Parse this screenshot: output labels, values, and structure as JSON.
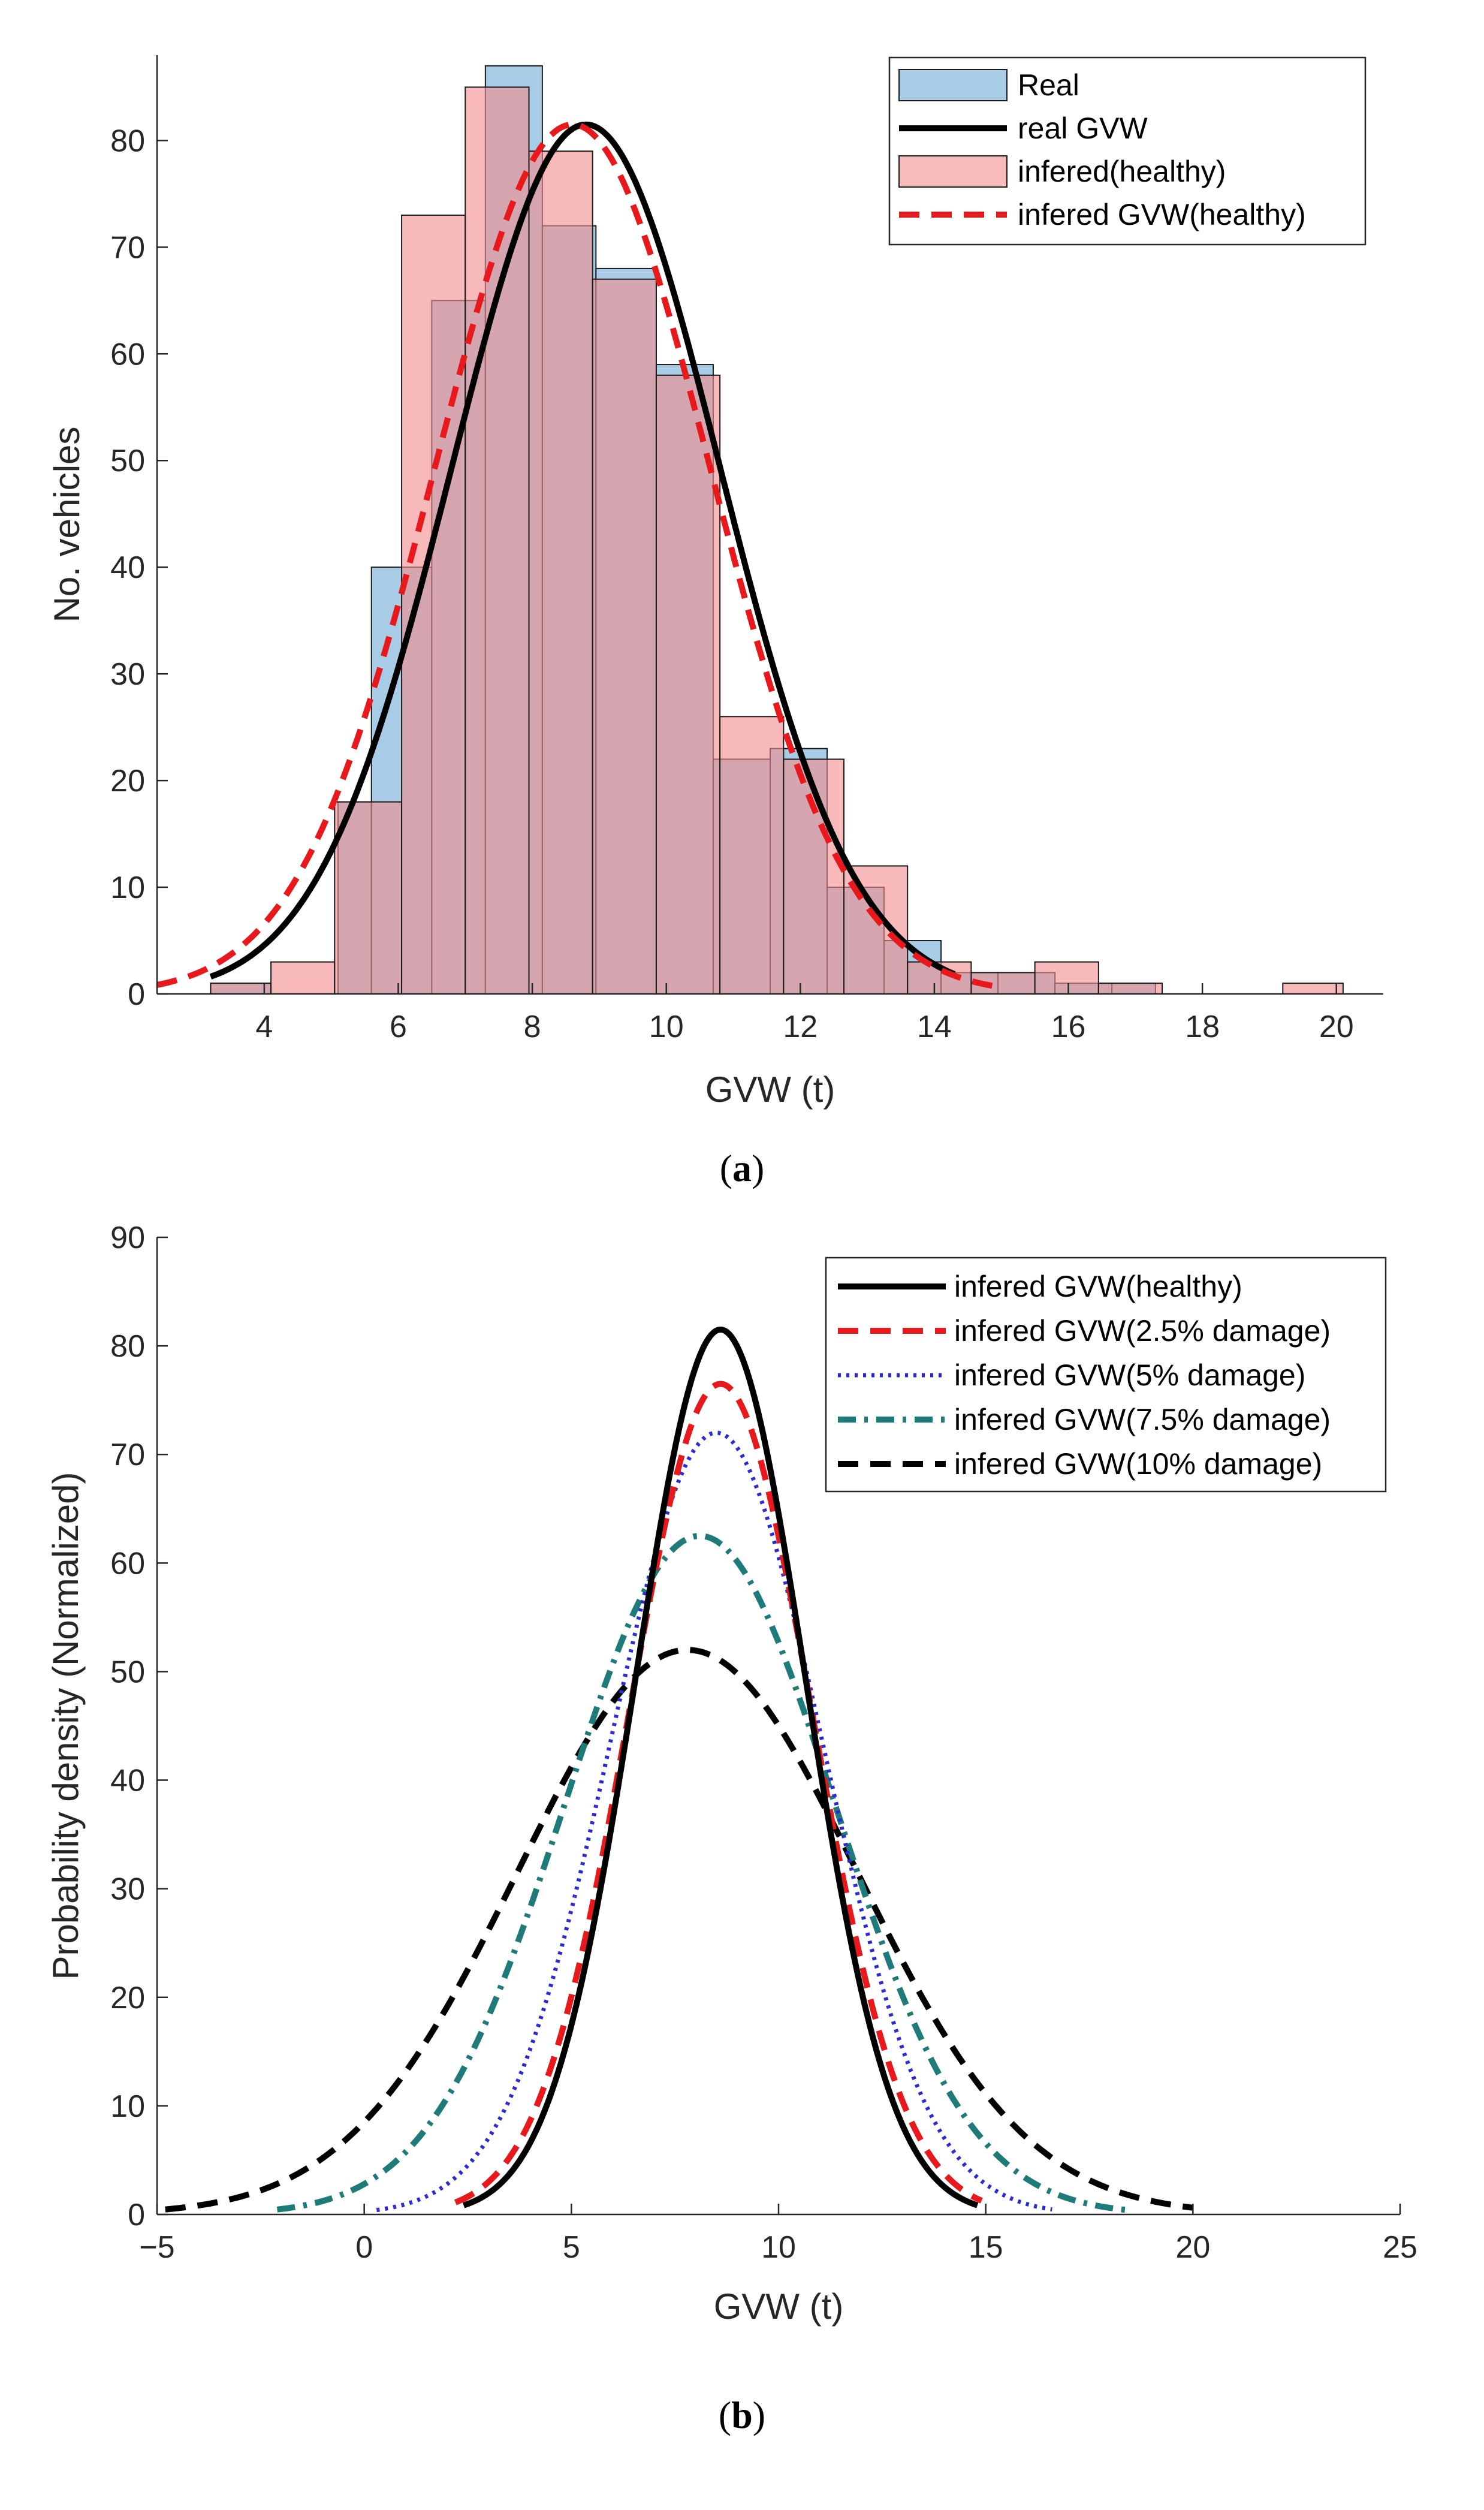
{
  "chart_data": [
    {
      "type": "bar",
      "panel": "a",
      "caption_label": "a",
      "xlabel": "GVW (t)",
      "ylabel": "No. vehicles",
      "xlim": [
        2.4,
        20.7
      ],
      "ylim": [
        0,
        88
      ],
      "xticks": [
        4,
        6,
        8,
        10,
        12,
        14,
        16,
        18,
        20
      ],
      "yticks": [
        0,
        10,
        20,
        30,
        40,
        50,
        60,
        70,
        80
      ],
      "legend_position": "top-right",
      "legend": [
        {
          "label": "Real",
          "kind": "patch",
          "fill": "#a8cce6",
          "stroke": "#2b6fa0"
        },
        {
          "label": "real GVW",
          "kind": "line",
          "color": "#000000",
          "dash": "solid"
        },
        {
          "label": "infered(healthy)",
          "kind": "patch",
          "fill": "#f7a6a6",
          "stroke": "#c84b4b"
        },
        {
          "label": "infered GVW(healthy)",
          "kind": "line",
          "color": "#e8191c",
          "dash": "dashed"
        }
      ],
      "series": [
        {
          "name": "Real",
          "color": "#a8cce6",
          "bins": [
            {
              "x0": 3.2,
              "x1": 4.1,
              "value": 1
            },
            {
              "x0": 5.1,
              "x1": 5.6,
              "value": 18
            },
            {
              "x0": 5.6,
              "x1": 6.5,
              "value": 40
            },
            {
              "x0": 6.5,
              "x1": 7.3,
              "value": 65
            },
            {
              "x0": 7.3,
              "x1": 8.15,
              "value": 87
            },
            {
              "x0": 8.15,
              "x1": 8.95,
              "value": 72
            },
            {
              "x0": 8.95,
              "x1": 9.85,
              "value": 68
            },
            {
              "x0": 9.85,
              "x1": 10.7,
              "value": 59
            },
            {
              "x0": 10.7,
              "x1": 11.55,
              "value": 22
            },
            {
              "x0": 11.55,
              "x1": 12.4,
              "value": 23
            },
            {
              "x0": 12.4,
              "x1": 13.25,
              "value": 10
            },
            {
              "x0": 13.25,
              "x1": 14.1,
              "value": 5
            },
            {
              "x0": 14.1,
              "x1": 14.95,
              "value": 2
            },
            {
              "x0": 14.95,
              "x1": 15.8,
              "value": 2
            },
            {
              "x0": 15.8,
              "x1": 16.65,
              "value": 1
            },
            {
              "x0": 16.65,
              "x1": 17.3,
              "value": 1
            }
          ]
        },
        {
          "name": "infered(healthy)",
          "color": "#f7a6a6",
          "bins": [
            {
              "x0": 3.2,
              "x1": 4.1,
              "value": 1
            },
            {
              "x0": 4.1,
              "x1": 5.05,
              "value": 3
            },
            {
              "x0": 5.05,
              "x1": 6.05,
              "value": 18
            },
            {
              "x0": 6.05,
              "x1": 7.0,
              "value": 73
            },
            {
              "x0": 7.0,
              "x1": 7.95,
              "value": 85
            },
            {
              "x0": 7.95,
              "x1": 8.9,
              "value": 79
            },
            {
              "x0": 8.9,
              "x1": 9.85,
              "value": 67
            },
            {
              "x0": 9.85,
              "x1": 10.8,
              "value": 58
            },
            {
              "x0": 10.8,
              "x1": 11.75,
              "value": 26
            },
            {
              "x0": 11.75,
              "x1": 12.65,
              "value": 22
            },
            {
              "x0": 12.65,
              "x1": 13.6,
              "value": 12
            },
            {
              "x0": 13.6,
              "x1": 14.55,
              "value": 3
            },
            {
              "x0": 14.55,
              "x1": 15.5,
              "value": 2
            },
            {
              "x0": 15.5,
              "x1": 16.45,
              "value": 3
            },
            {
              "x0": 16.45,
              "x1": 17.4,
              "value": 1
            },
            {
              "x0": 19.2,
              "x1": 20.1,
              "value": 1
            }
          ]
        }
      ],
      "curves": [
        {
          "name": "real GVW",
          "mean": 8.8,
          "sd": 2.0,
          "peak": 81.5,
          "x_start": 3.2,
          "x_end": 14.3,
          "color": "#000000",
          "dash": "solid"
        },
        {
          "name": "infered GVW(healthy)",
          "mean": 8.6,
          "sd": 2.05,
          "peak": 81.5,
          "x_start": 2.4,
          "x_end": 15.0,
          "color": "#e8191c",
          "dash": "dashed"
        }
      ]
    },
    {
      "type": "line",
      "panel": "b",
      "caption_label": "b",
      "xlabel": "GVW (t)",
      "ylabel": "Probability density (Normalized)",
      "xlim": [
        -5,
        25
      ],
      "ylim": [
        0,
        90
      ],
      "xticks": [
        -5,
        0,
        5,
        10,
        15,
        20,
        25
      ],
      "xtick_labels": [
        "−5",
        "0",
        "5",
        "10",
        "15",
        "20",
        "25"
      ],
      "yticks": [
        0,
        10,
        20,
        30,
        40,
        50,
        60,
        70,
        80,
        90
      ],
      "legend_position": "top-right",
      "series": [
        {
          "name": "infered GVW(healthy)",
          "mean": 8.6,
          "sd": 2.05,
          "peak": 81.5,
          "x_start": 2.4,
          "x_end": 14.8,
          "color": "#000000",
          "dash": "solid"
        },
        {
          "name": "infered GVW(2.5% damage)",
          "mean": 8.6,
          "sd": 2.2,
          "peak": 76.5,
          "x_start": 2.2,
          "x_end": 14.9,
          "color": "#e8191c",
          "dash": "dashed"
        },
        {
          "name": "infered GVW(5% damage)",
          "mean": 8.5,
          "sd": 2.55,
          "peak": 72.0,
          "x_start": 0.3,
          "x_end": 16.6,
          "color": "#2b2bd4",
          "dash": "dotted"
        },
        {
          "name": "infered GVW(7.5% damage)",
          "mean": 8.1,
          "sd": 3.25,
          "peak": 62.5,
          "x_start": -2.1,
          "x_end": 18.4,
          "color": "#1f7a7a",
          "dash": "dashdot"
        },
        {
          "name": "infered GVW(10% damage)",
          "mean": 7.8,
          "sd": 4.1,
          "peak": 52.0,
          "x_start": -4.8,
          "x_end": 20.0,
          "color": "#000000",
          "dash": "dashed"
        }
      ]
    }
  ]
}
